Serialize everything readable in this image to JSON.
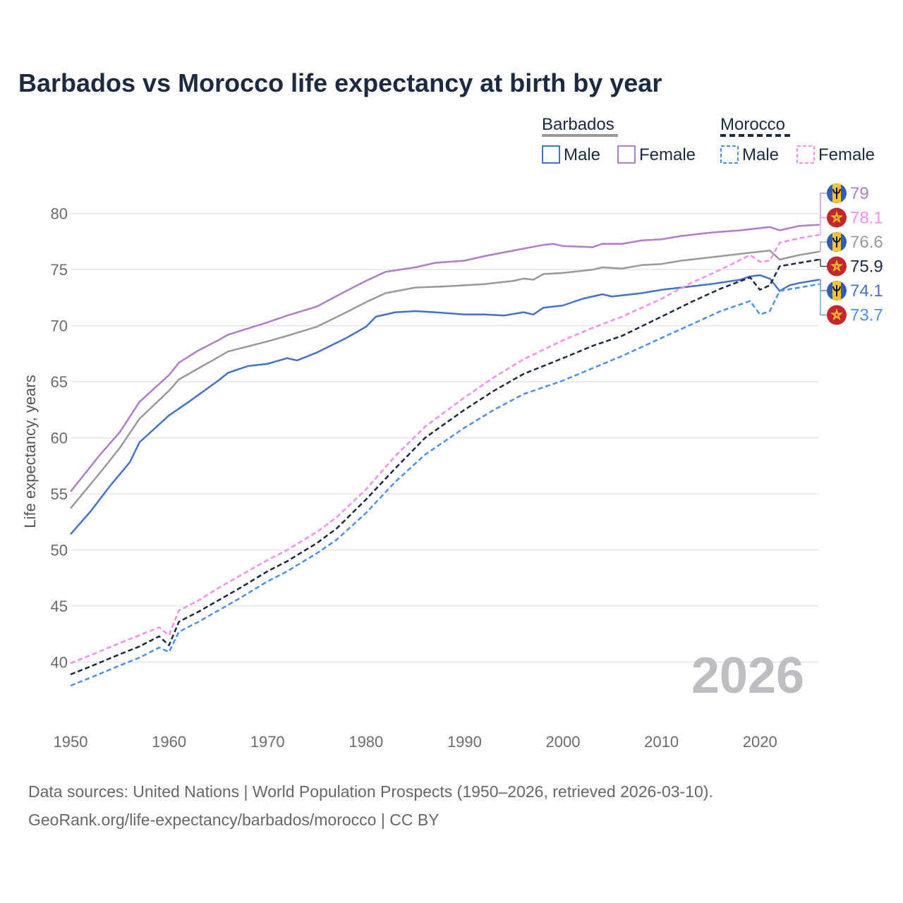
{
  "title": "Barbados vs Morocco life expectancy at birth by year",
  "ylabel": "Life expectancy, years",
  "year_watermark": "2026",
  "sources": {
    "line1": "Data sources: United Nations | World Population Prospects (1950–2026, retrieved 2026-03-10).",
    "line2": "GeoRank.org/life-expectancy/barbados/morocco | CC BY"
  },
  "legend": {
    "barbados": {
      "label": "Barbados",
      "male": "Male",
      "female": "Female"
    },
    "morocco": {
      "label": "Morocco",
      "male": "Male",
      "female": "Female"
    }
  },
  "colors": {
    "barbados_total": "#999999",
    "barbados_male": "#4472c4",
    "barbados_female": "#b07cc6",
    "morocco_total": "#1b2a41",
    "morocco_male": "#4e8fe6",
    "morocco_female": "#f48ef0",
    "flag_barbados_blue": "#2f5fb5",
    "flag_barbados_gold": "#f7c531",
    "flag_morocco_red": "#c1272d",
    "flag_morocco_star": "#f7c531"
  },
  "chart_data": {
    "type": "line",
    "xlim": [
      1950,
      2026
    ],
    "ylim": [
      35,
      83
    ],
    "x_ticks": [
      1950,
      1960,
      1970,
      1980,
      1990,
      2000,
      2010,
      2020
    ],
    "y_ticks": [
      40,
      45,
      50,
      55,
      60,
      65,
      70,
      75,
      80
    ],
    "series": [
      {
        "key": "barbados_female",
        "name": "Barbados Female",
        "country": "Barbados",
        "dashed": false,
        "end_label": "79",
        "points": [
          [
            1950,
            55.2
          ],
          [
            1953,
            58.5
          ],
          [
            1955,
            60.5
          ],
          [
            1957,
            63.2
          ],
          [
            1960,
            65.6
          ],
          [
            1961,
            66.7
          ],
          [
            1963,
            67.8
          ],
          [
            1965,
            68.7
          ],
          [
            1966,
            69.2
          ],
          [
            1970,
            70.3
          ],
          [
            1972,
            70.9
          ],
          [
            1975,
            71.7
          ],
          [
            1978,
            73.1
          ],
          [
            1980,
            74.0
          ],
          [
            1982,
            74.8
          ],
          [
            1985,
            75.2
          ],
          [
            1987,
            75.6
          ],
          [
            1990,
            75.8
          ],
          [
            1992,
            76.2
          ],
          [
            1995,
            76.7
          ],
          [
            1998,
            77.2
          ],
          [
            1999,
            77.3
          ],
          [
            2000,
            77.1
          ],
          [
            2003,
            77.0
          ],
          [
            2004,
            77.3
          ],
          [
            2006,
            77.3
          ],
          [
            2008,
            77.6
          ],
          [
            2010,
            77.7
          ],
          [
            2012,
            78.0
          ],
          [
            2015,
            78.3
          ],
          [
            2018,
            78.5
          ],
          [
            2021,
            78.8
          ],
          [
            2022,
            78.5
          ],
          [
            2024,
            78.9
          ],
          [
            2026,
            79.0
          ]
        ]
      },
      {
        "key": "barbados_total",
        "name": "Barbados",
        "country": "Barbados",
        "dashed": false,
        "end_label": "76.6",
        "points": [
          [
            1950,
            53.7
          ],
          [
            1953,
            56.9
          ],
          [
            1955,
            59.1
          ],
          [
            1957,
            61.7
          ],
          [
            1960,
            64.2
          ],
          [
            1961,
            65.2
          ],
          [
            1963,
            66.2
          ],
          [
            1965,
            67.2
          ],
          [
            1966,
            67.7
          ],
          [
            1970,
            68.6
          ],
          [
            1972,
            69.1
          ],
          [
            1975,
            69.9
          ],
          [
            1978,
            71.2
          ],
          [
            1980,
            72.1
          ],
          [
            1982,
            72.9
          ],
          [
            1985,
            73.4
          ],
          [
            1988,
            73.5
          ],
          [
            1990,
            73.6
          ],
          [
            1992,
            73.7
          ],
          [
            1995,
            74.0
          ],
          [
            1996,
            74.2
          ],
          [
            1997,
            74.1
          ],
          [
            1998,
            74.6
          ],
          [
            2000,
            74.7
          ],
          [
            2003,
            75.0
          ],
          [
            2004,
            75.2
          ],
          [
            2006,
            75.1
          ],
          [
            2008,
            75.4
          ],
          [
            2010,
            75.5
          ],
          [
            2012,
            75.8
          ],
          [
            2015,
            76.1
          ],
          [
            2018,
            76.4
          ],
          [
            2021,
            76.7
          ],
          [
            2022,
            75.9
          ],
          [
            2024,
            76.3
          ],
          [
            2026,
            76.6
          ]
        ]
      },
      {
        "key": "barbados_male",
        "name": "Barbados Male",
        "country": "Barbados",
        "dashed": false,
        "end_label": "74.1",
        "points": [
          [
            1950,
            51.4
          ],
          [
            1952,
            53.4
          ],
          [
            1954,
            55.7
          ],
          [
            1956,
            57.8
          ],
          [
            1957,
            59.6
          ],
          [
            1960,
            62.0
          ],
          [
            1962,
            63.2
          ],
          [
            1965,
            65.1
          ],
          [
            1966,
            65.8
          ],
          [
            1968,
            66.4
          ],
          [
            1970,
            66.6
          ],
          [
            1972,
            67.1
          ],
          [
            1973,
            66.9
          ],
          [
            1975,
            67.6
          ],
          [
            1978,
            68.9
          ],
          [
            1980,
            69.9
          ],
          [
            1981,
            70.8
          ],
          [
            1983,
            71.2
          ],
          [
            1985,
            71.3
          ],
          [
            1987,
            71.2
          ],
          [
            1990,
            71.0
          ],
          [
            1992,
            71.0
          ],
          [
            1994,
            70.9
          ],
          [
            1996,
            71.2
          ],
          [
            1997,
            71.0
          ],
          [
            1998,
            71.6
          ],
          [
            2000,
            71.8
          ],
          [
            2002,
            72.4
          ],
          [
            2004,
            72.8
          ],
          [
            2005,
            72.6
          ],
          [
            2008,
            72.9
          ],
          [
            2010,
            73.2
          ],
          [
            2012,
            73.4
          ],
          [
            2015,
            73.7
          ],
          [
            2018,
            74.1
          ],
          [
            2019,
            74.4
          ],
          [
            2020,
            74.5
          ],
          [
            2021,
            74.2
          ],
          [
            2022,
            73.1
          ],
          [
            2023,
            73.6
          ],
          [
            2024,
            73.8
          ],
          [
            2026,
            74.1
          ]
        ]
      },
      {
        "key": "morocco_female",
        "name": "Morocco Female",
        "country": "Morocco",
        "dashed": true,
        "end_label": "78.1",
        "points": [
          [
            1950,
            39.9
          ],
          [
            1952,
            40.6
          ],
          [
            1955,
            41.7
          ],
          [
            1957,
            42.4
          ],
          [
            1959,
            43.1
          ],
          [
            1960,
            42.4
          ],
          [
            1961,
            44.6
          ],
          [
            1963,
            45.5
          ],
          [
            1965,
            46.6
          ],
          [
            1967,
            47.6
          ],
          [
            1970,
            49.1
          ],
          [
            1972,
            50.0
          ],
          [
            1975,
            51.6
          ],
          [
            1977,
            52.9
          ],
          [
            1980,
            55.4
          ],
          [
            1983,
            58.4
          ],
          [
            1986,
            61.0
          ],
          [
            1990,
            63.6
          ],
          [
            1993,
            65.4
          ],
          [
            1996,
            67.0
          ],
          [
            2000,
            68.7
          ],
          [
            2003,
            69.8
          ],
          [
            2006,
            70.8
          ],
          [
            2010,
            72.4
          ],
          [
            2013,
            73.8
          ],
          [
            2016,
            75.0
          ],
          [
            2019,
            76.3
          ],
          [
            2020,
            75.7
          ],
          [
            2021,
            75.8
          ],
          [
            2022,
            77.4
          ],
          [
            2024,
            77.8
          ],
          [
            2026,
            78.1
          ]
        ]
      },
      {
        "key": "morocco_total",
        "name": "Morocco",
        "country": "Morocco",
        "dashed": true,
        "end_label": "75.9",
        "points": [
          [
            1950,
            38.9
          ],
          [
            1952,
            39.6
          ],
          [
            1955,
            40.7
          ],
          [
            1957,
            41.4
          ],
          [
            1959,
            42.3
          ],
          [
            1960,
            41.5
          ],
          [
            1961,
            43.6
          ],
          [
            1963,
            44.5
          ],
          [
            1965,
            45.5
          ],
          [
            1967,
            46.5
          ],
          [
            1970,
            48.1
          ],
          [
            1972,
            49.0
          ],
          [
            1975,
            50.6
          ],
          [
            1977,
            51.9
          ],
          [
            1980,
            54.5
          ],
          [
            1983,
            57.3
          ],
          [
            1986,
            60.0
          ],
          [
            1990,
            62.5
          ],
          [
            1993,
            64.2
          ],
          [
            1996,
            65.7
          ],
          [
            2000,
            67.1
          ],
          [
            2003,
            68.2
          ],
          [
            2006,
            69.1
          ],
          [
            2010,
            70.8
          ],
          [
            2013,
            72.1
          ],
          [
            2016,
            73.3
          ],
          [
            2019,
            74.3
          ],
          [
            2020,
            73.2
          ],
          [
            2021,
            73.6
          ],
          [
            2022,
            75.3
          ],
          [
            2024,
            75.6
          ],
          [
            2026,
            75.9
          ]
        ]
      },
      {
        "key": "morocco_male",
        "name": "Morocco Male",
        "country": "Morocco",
        "dashed": true,
        "end_label": "73.7",
        "points": [
          [
            1950,
            37.9
          ],
          [
            1952,
            38.6
          ],
          [
            1955,
            39.7
          ],
          [
            1957,
            40.4
          ],
          [
            1959,
            41.3
          ],
          [
            1960,
            40.9
          ],
          [
            1961,
            42.7
          ],
          [
            1963,
            43.6
          ],
          [
            1965,
            44.6
          ],
          [
            1967,
            45.6
          ],
          [
            1970,
            47.2
          ],
          [
            1972,
            48.1
          ],
          [
            1975,
            49.7
          ],
          [
            1977,
            50.9
          ],
          [
            1980,
            53.3
          ],
          [
            1983,
            56.1
          ],
          [
            1986,
            58.5
          ],
          [
            1990,
            60.9
          ],
          [
            1993,
            62.5
          ],
          [
            1996,
            63.9
          ],
          [
            2000,
            65.1
          ],
          [
            2003,
            66.2
          ],
          [
            2006,
            67.3
          ],
          [
            2010,
            68.9
          ],
          [
            2013,
            70.1
          ],
          [
            2016,
            71.3
          ],
          [
            2019,
            72.2
          ],
          [
            2020,
            71.0
          ],
          [
            2021,
            71.3
          ],
          [
            2022,
            73.1
          ],
          [
            2024,
            73.4
          ],
          [
            2026,
            73.7
          ]
        ]
      }
    ]
  }
}
